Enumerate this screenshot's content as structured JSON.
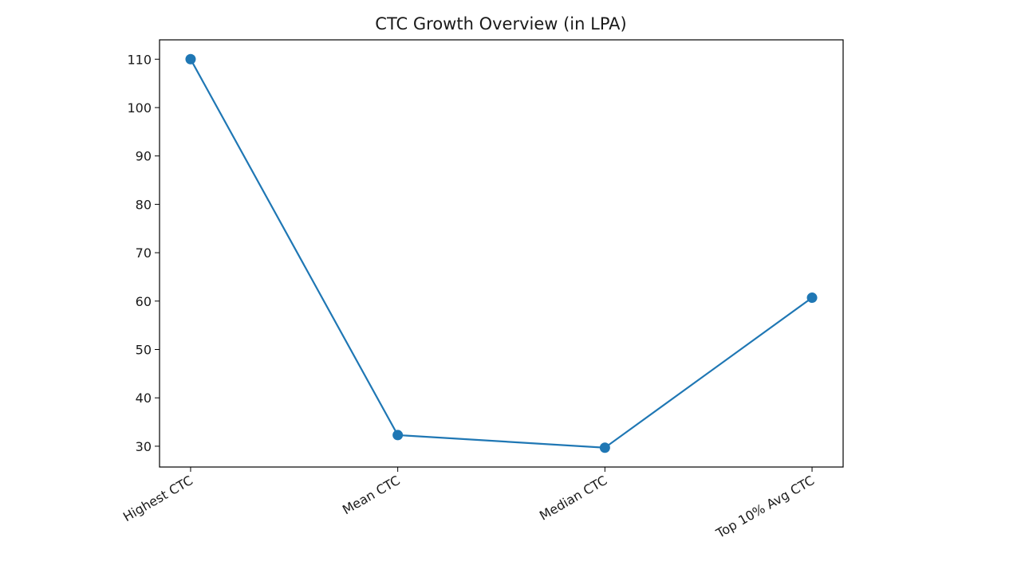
{
  "chart_data": {
    "type": "line",
    "title": "CTC Growth Overview (in LPA)",
    "xlabel": "",
    "ylabel": "",
    "categories": [
      "Highest CTC",
      "Mean CTC",
      "Median CTC",
      "Top 10% Avg CTC"
    ],
    "series": [
      {
        "name": "CTC",
        "values": [
          110.0,
          32.3,
          29.7,
          60.7
        ],
        "color": "#1f77b4",
        "marker": "circle"
      }
    ],
    "ylim": [
      25.7,
      114.0
    ],
    "yticks": [
      30,
      40,
      50,
      60,
      70,
      80,
      90,
      100,
      110
    ],
    "grid": false,
    "legend": "none"
  }
}
